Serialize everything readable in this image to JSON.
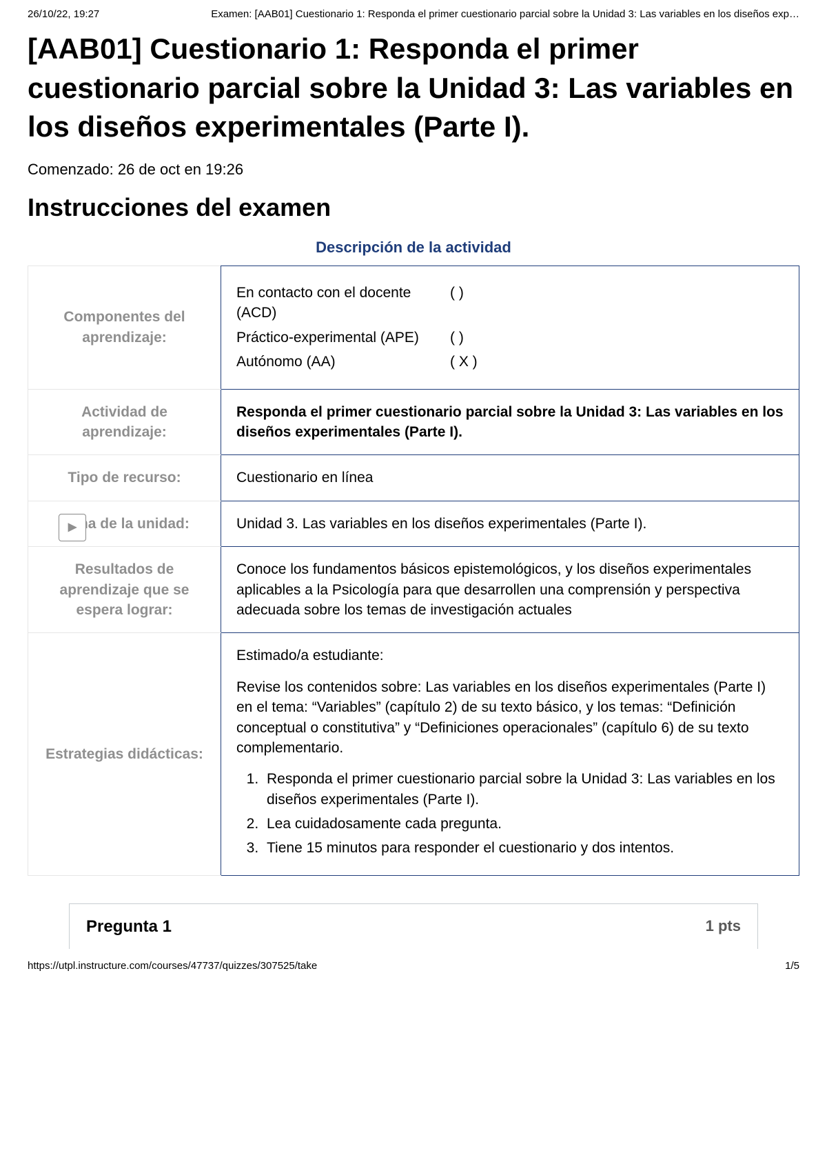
{
  "print_header": {
    "timestamp": "26/10/22, 19:27",
    "page_title": "Examen: [AAB01] Cuestionario 1: Responda el primer cuestionario parcial sobre la Unidad 3: Las variables en los diseños exp…"
  },
  "main_title": "[AAB01] Cuestionario 1: Responda el primer cuestionario parcial sobre la Unidad 3: Las variables en los diseños experimentales (Parte I).",
  "started_text": "Comenzado: 26 de oct en 19:26",
  "instructions_heading": "Instrucciones del examen",
  "description_caption": "Descripción de la actividad",
  "rows": {
    "componentes": {
      "label": "Componentes del aprendizaje:",
      "items": [
        {
          "name": "En contacto con el docente (ACD)",
          "mark": "(     )"
        },
        {
          "name": "Práctico-experimental (APE)",
          "mark": "(     )"
        },
        {
          "name": "Autónomo (AA)",
          "mark": "( X )"
        }
      ]
    },
    "actividad": {
      "label": "Actividad de aprendizaje:",
      "value": "Responda el primer cuestionario parcial sobre la Unidad 3: Las variables en los diseños experimentales (Parte I)."
    },
    "tipo": {
      "label": "Tipo de recurso:",
      "value": "Cuestionario en línea"
    },
    "tema": {
      "label": "Tema de la unidad:",
      "value": "Unidad 3. Las variables en los diseños experimentales (Parte I)."
    },
    "resultados": {
      "label": "Resultados de aprendizaje que se espera lograr:",
      "value": "Conoce los fundamentos básicos epistemológicos, y los diseños experimentales aplicables a la Psicología para que desarrollen una comprensión y perspectiva adecuada sobre los temas de investigación actuales"
    },
    "estrategias": {
      "label": "Estrategias didácticas:",
      "intro": "Estimado/a estudiante:",
      "paragraph": "Revise los contenidos sobre: Las variables en los diseños experimentales (Parte I) en el tema: “Variables” (capítulo 2) de su texto básico, y los temas: “Definición conceptual o constitutiva” y “Definiciones operacionales” (capítulo 6) de su texto complementario.",
      "list": [
        "Responda el primer cuestionario parcial sobre la Unidad 3: Las variables en los diseños experimentales (Parte I).",
        "Lea cuidadosamente cada pregunta.",
        "Tiene 15 minutos para responder el cuestionario y dos intentos."
      ]
    }
  },
  "question": {
    "title": "Pregunta 1",
    "points": "1 pts"
  },
  "print_footer": {
    "url": "https://utpl.instructure.com/courses/47737/quizzes/307525/take",
    "page": "1/5"
  },
  "colors": {
    "border_blue": "#1f3d7a",
    "label_gray": "#8f8f8f",
    "light_border": "#e6e6e6",
    "pts_gray": "#595959"
  }
}
